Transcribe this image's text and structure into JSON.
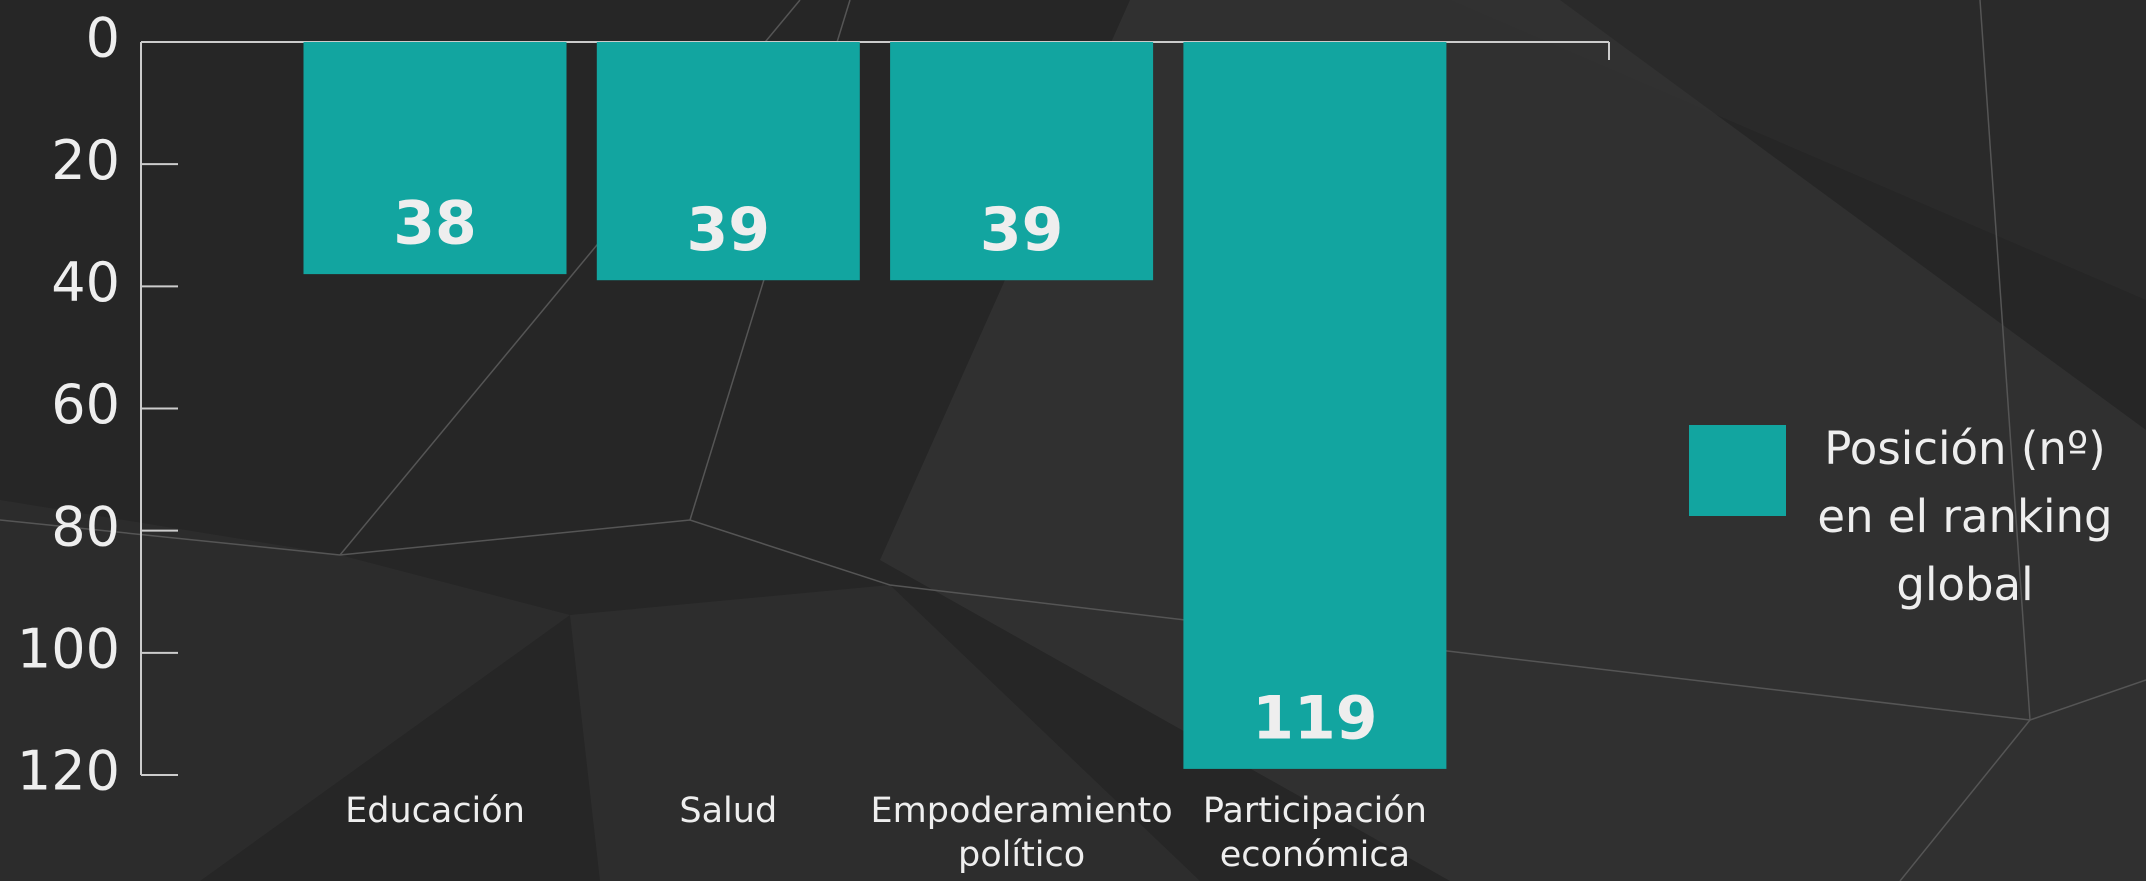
{
  "chart_data": {
    "type": "bar",
    "categories": [
      "Educación",
      "Salud",
      "Empoderamiento político",
      "Participación económica"
    ],
    "series": [
      {
        "name": "Posición (nº) en el ranking global",
        "color": "#12a5a0",
        "values": [
          38,
          39,
          39,
          119
        ]
      }
    ],
    "ylim": [
      0,
      120
    ],
    "yticks": [
      0,
      20,
      40,
      60,
      80,
      100,
      120
    ],
    "y_inverted": true,
    "legend": "right"
  }
}
